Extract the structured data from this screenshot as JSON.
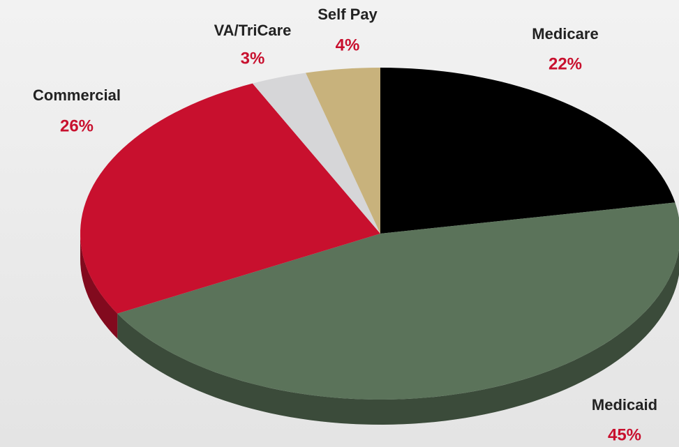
{
  "chart_data": {
    "type": "pie",
    "three_d": true,
    "categories": [
      "Medicare",
      "Medicaid",
      "Commercial",
      "VA/TriCare",
      "Self Pay"
    ],
    "values": [
      22,
      45,
      26,
      3,
      4
    ],
    "value_labels": [
      "22%",
      "45%",
      "26%",
      "3%",
      "4%"
    ],
    "colors": [
      "#000000",
      "#5b735a",
      "#c8102e",
      "#d6d6d8",
      "#c8b27c"
    ]
  }
}
